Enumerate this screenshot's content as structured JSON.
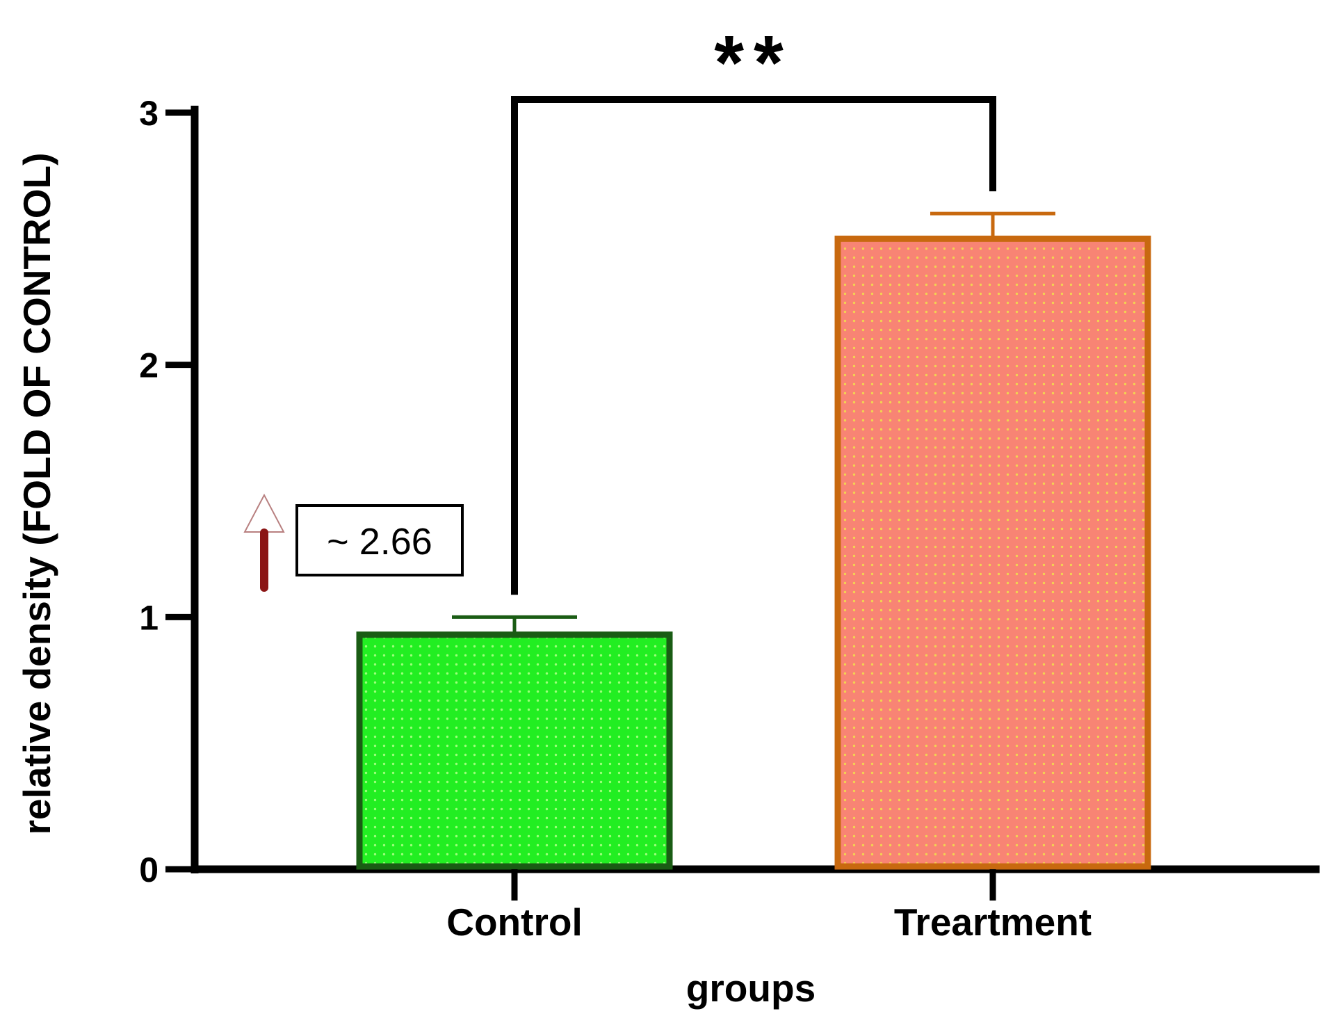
{
  "chart_data": {
    "type": "bar",
    "xlabel": "groups",
    "ylabel": "relative density (FOLD OF CONTROL)",
    "ylim": [
      0,
      3
    ],
    "yticks": [
      "0",
      "1",
      "2",
      "3"
    ],
    "categories": [
      "Control",
      "Treartment"
    ],
    "values": [
      0.93,
      2.5
    ],
    "error_bars": [
      0.07,
      0.1
    ],
    "bar_colors": [
      "#22ee22",
      "#f88474"
    ],
    "bar_edge_colors": [
      "#1a5c14",
      "#c8690f"
    ],
    "bar_dot_colors": [
      "#9cff7a",
      "#f2d352"
    ],
    "significance": {
      "label": "**",
      "between": [
        "Control",
        "Treartment"
      ]
    },
    "annotation": {
      "text": "~ 2.66",
      "arrow_color": "#8b1515"
    },
    "grid": false,
    "legend": "none"
  }
}
